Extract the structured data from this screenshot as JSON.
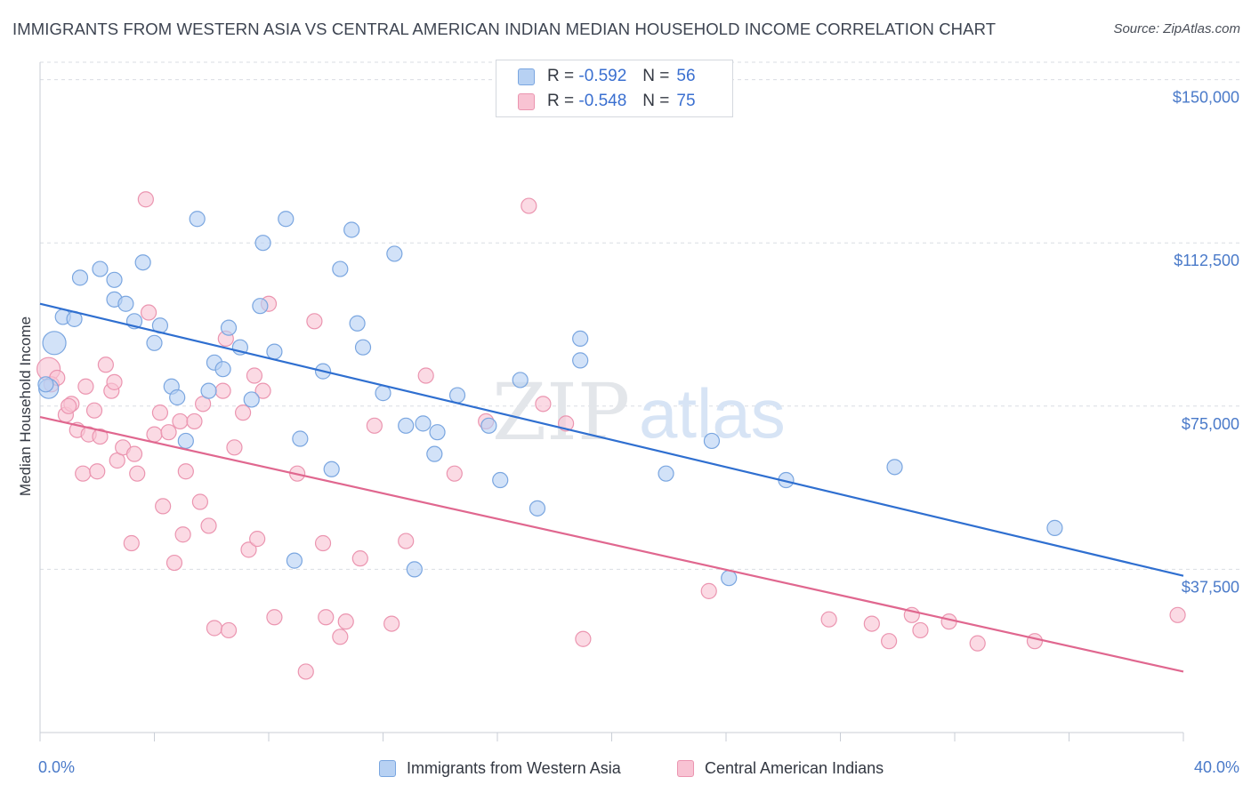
{
  "title": "IMMIGRANTS FROM WESTERN ASIA VS CENTRAL AMERICAN INDIAN MEDIAN HOUSEHOLD INCOME CORRELATION CHART",
  "source": "Source: ZipAtlas.com",
  "watermark": {
    "zip": "ZIP",
    "atlas": "atlas"
  },
  "colors": {
    "blue_fill": "#b7d1f3",
    "blue_stroke": "#7aa6e0",
    "blue_line": "#2f6fd0",
    "pink_fill": "#f8c3d3",
    "pink_stroke": "#eb95b0",
    "pink_line": "#e0678f",
    "grid": "#d9dde3",
    "axis_text": "#4a7ac9"
  },
  "legend": {
    "rows": [
      {
        "r_label": "R =",
        "r_value": "-0.592",
        "n_label": "N =",
        "n_value": "56"
      },
      {
        "r_label": "R =",
        "r_value": "-0.548",
        "n_label": "N =",
        "n_value": "75"
      }
    ]
  },
  "bottom_legend": {
    "blue": "Immigrants from Western Asia",
    "pink": "Central American Indians"
  },
  "chart_data": {
    "type": "scatter",
    "title": "IMMIGRANTS FROM WESTERN ASIA VS CENTRAL AMERICAN INDIAN MEDIAN HOUSEHOLD INCOME CORRELATION CHART",
    "xlabel": "",
    "ylabel": "Median Household Income",
    "xlim": [
      0,
      40
    ],
    "ylim": [
      0,
      154000
    ],
    "x_tick_labels": [
      "0.0%",
      "40.0%"
    ],
    "y_ticks": [
      37500,
      75000,
      112500,
      150000
    ],
    "y_tick_labels": [
      "$37,500",
      "$75,000",
      "$112,500",
      "$150,000"
    ],
    "grid": true,
    "legend_position": "top-center",
    "series": [
      {
        "name": "Immigrants from Western Asia",
        "color": "#b7d1f3",
        "points": [
          [
            0.5,
            89500
          ],
          [
            0.8,
            95500
          ],
          [
            1.4,
            104500
          ],
          [
            2.1,
            106500
          ],
          [
            2.6,
            99500
          ],
          [
            2.6,
            104000
          ],
          [
            3.0,
            98500
          ],
          [
            3.3,
            94500
          ],
          [
            3.6,
            108000
          ],
          [
            4.0,
            89500
          ],
          [
            4.2,
            93500
          ],
          [
            4.6,
            79500
          ],
          [
            4.8,
            77000
          ],
          [
            5.1,
            67000
          ],
          [
            5.5,
            118000
          ],
          [
            5.9,
            78500
          ],
          [
            6.1,
            85000
          ],
          [
            6.4,
            83500
          ],
          [
            6.6,
            93000
          ],
          [
            7.0,
            88500
          ],
          [
            7.4,
            76500
          ],
          [
            7.7,
            98000
          ],
          [
            7.8,
            112500
          ],
          [
            8.2,
            87500
          ],
          [
            8.6,
            118000
          ],
          [
            8.9,
            39500
          ],
          [
            9.1,
            67500
          ],
          [
            9.9,
            83000
          ],
          [
            10.2,
            60500
          ],
          [
            10.5,
            106500
          ],
          [
            10.9,
            115500
          ],
          [
            11.1,
            94000
          ],
          [
            11.3,
            88500
          ],
          [
            12.0,
            78000
          ],
          [
            12.4,
            110000
          ],
          [
            12.8,
            70500
          ],
          [
            13.1,
            37500
          ],
          [
            13.4,
            71000
          ],
          [
            13.8,
            64000
          ],
          [
            13.9,
            69000
          ],
          [
            14.6,
            77500
          ],
          [
            15.7,
            70500
          ],
          [
            16.1,
            58000
          ],
          [
            16.8,
            81000
          ],
          [
            17.4,
            51500
          ],
          [
            18.9,
            85500
          ],
          [
            18.9,
            90500
          ],
          [
            21.9,
            59500
          ],
          [
            23.5,
            67000
          ],
          [
            24.1,
            35500
          ],
          [
            26.1,
            58000
          ],
          [
            29.9,
            61000
          ],
          [
            35.5,
            47000
          ],
          [
            0.3,
            79000
          ],
          [
            1.2,
            95000
          ],
          [
            0.2,
            80000
          ]
        ]
      },
      {
        "name": "Central American Indians",
        "color": "#f8c3d3",
        "points": [
          [
            0.3,
            83500
          ],
          [
            0.4,
            80000
          ],
          [
            0.9,
            73000
          ],
          [
            1.1,
            75500
          ],
          [
            1.3,
            69500
          ],
          [
            1.5,
            59500
          ],
          [
            1.6,
            79500
          ],
          [
            1.7,
            68500
          ],
          [
            1.9,
            74000
          ],
          [
            2.0,
            60000
          ],
          [
            2.1,
            68000
          ],
          [
            2.3,
            84500
          ],
          [
            2.5,
            78500
          ],
          [
            2.6,
            80500
          ],
          [
            2.7,
            62500
          ],
          [
            2.9,
            65500
          ],
          [
            3.2,
            43500
          ],
          [
            3.3,
            64000
          ],
          [
            3.4,
            59500
          ],
          [
            3.7,
            122500
          ],
          [
            3.8,
            96500
          ],
          [
            4.0,
            68500
          ],
          [
            4.2,
            73500
          ],
          [
            4.3,
            52000
          ],
          [
            4.5,
            69000
          ],
          [
            4.7,
            39000
          ],
          [
            4.9,
            71500
          ],
          [
            5.0,
            45500
          ],
          [
            5.1,
            60000
          ],
          [
            5.4,
            71500
          ],
          [
            5.6,
            53000
          ],
          [
            5.7,
            75500
          ],
          [
            5.9,
            47500
          ],
          [
            6.1,
            24000
          ],
          [
            6.4,
            78500
          ],
          [
            6.5,
            90500
          ],
          [
            6.6,
            23500
          ],
          [
            6.8,
            65500
          ],
          [
            7.1,
            73500
          ],
          [
            7.3,
            42000
          ],
          [
            7.5,
            82000
          ],
          [
            7.6,
            44500
          ],
          [
            7.8,
            78500
          ],
          [
            8.0,
            98500
          ],
          [
            8.2,
            26500
          ],
          [
            9.0,
            59500
          ],
          [
            9.3,
            14000
          ],
          [
            9.6,
            94500
          ],
          [
            9.9,
            43500
          ],
          [
            10.0,
            26500
          ],
          [
            10.5,
            22000
          ],
          [
            10.7,
            25500
          ],
          [
            11.2,
            40000
          ],
          [
            11.7,
            70500
          ],
          [
            12.3,
            25000
          ],
          [
            12.8,
            44000
          ],
          [
            13.5,
            82000
          ],
          [
            14.5,
            59500
          ],
          [
            15.6,
            71500
          ],
          [
            17.1,
            121000
          ],
          [
            17.6,
            75500
          ],
          [
            18.4,
            71000
          ],
          [
            19.0,
            21500
          ],
          [
            23.4,
            32500
          ],
          [
            27.6,
            26000
          ],
          [
            29.1,
            25000
          ],
          [
            29.7,
            21000
          ],
          [
            30.5,
            27000
          ],
          [
            30.8,
            23500
          ],
          [
            31.8,
            25500
          ],
          [
            32.8,
            20500
          ],
          [
            34.8,
            21000
          ],
          [
            39.8,
            27000
          ],
          [
            0.6,
            81500
          ],
          [
            1.0,
            75000
          ]
        ]
      }
    ],
    "trend_lines": [
      {
        "name": "Immigrants from Western Asia",
        "from": [
          0,
          98500
        ],
        "to": [
          40,
          36000
        ]
      },
      {
        "name": "Central American Indians",
        "from": [
          0,
          72500
        ],
        "to": [
          40,
          14000
        ]
      }
    ]
  }
}
